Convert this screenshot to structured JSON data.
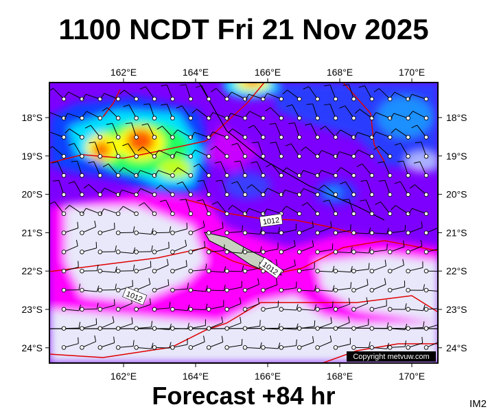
{
  "header": {
    "title": "1100 NCDT Fri 21 Nov 2025"
  },
  "map": {
    "lon_labels": [
      "162°E",
      "164°E",
      "166°E",
      "168°E",
      "170°E"
    ],
    "lat_labels": [
      "18°S",
      "19°S",
      "20°S",
      "21°S",
      "22°S",
      "23°S",
      "24°S"
    ],
    "isobar_labels": [
      "1012",
      "1012",
      "1012"
    ],
    "copyright": "Copyright metvuw.com"
  },
  "footer": {
    "forecast": "Forecast +84 hr",
    "image_id": "IM2"
  }
}
